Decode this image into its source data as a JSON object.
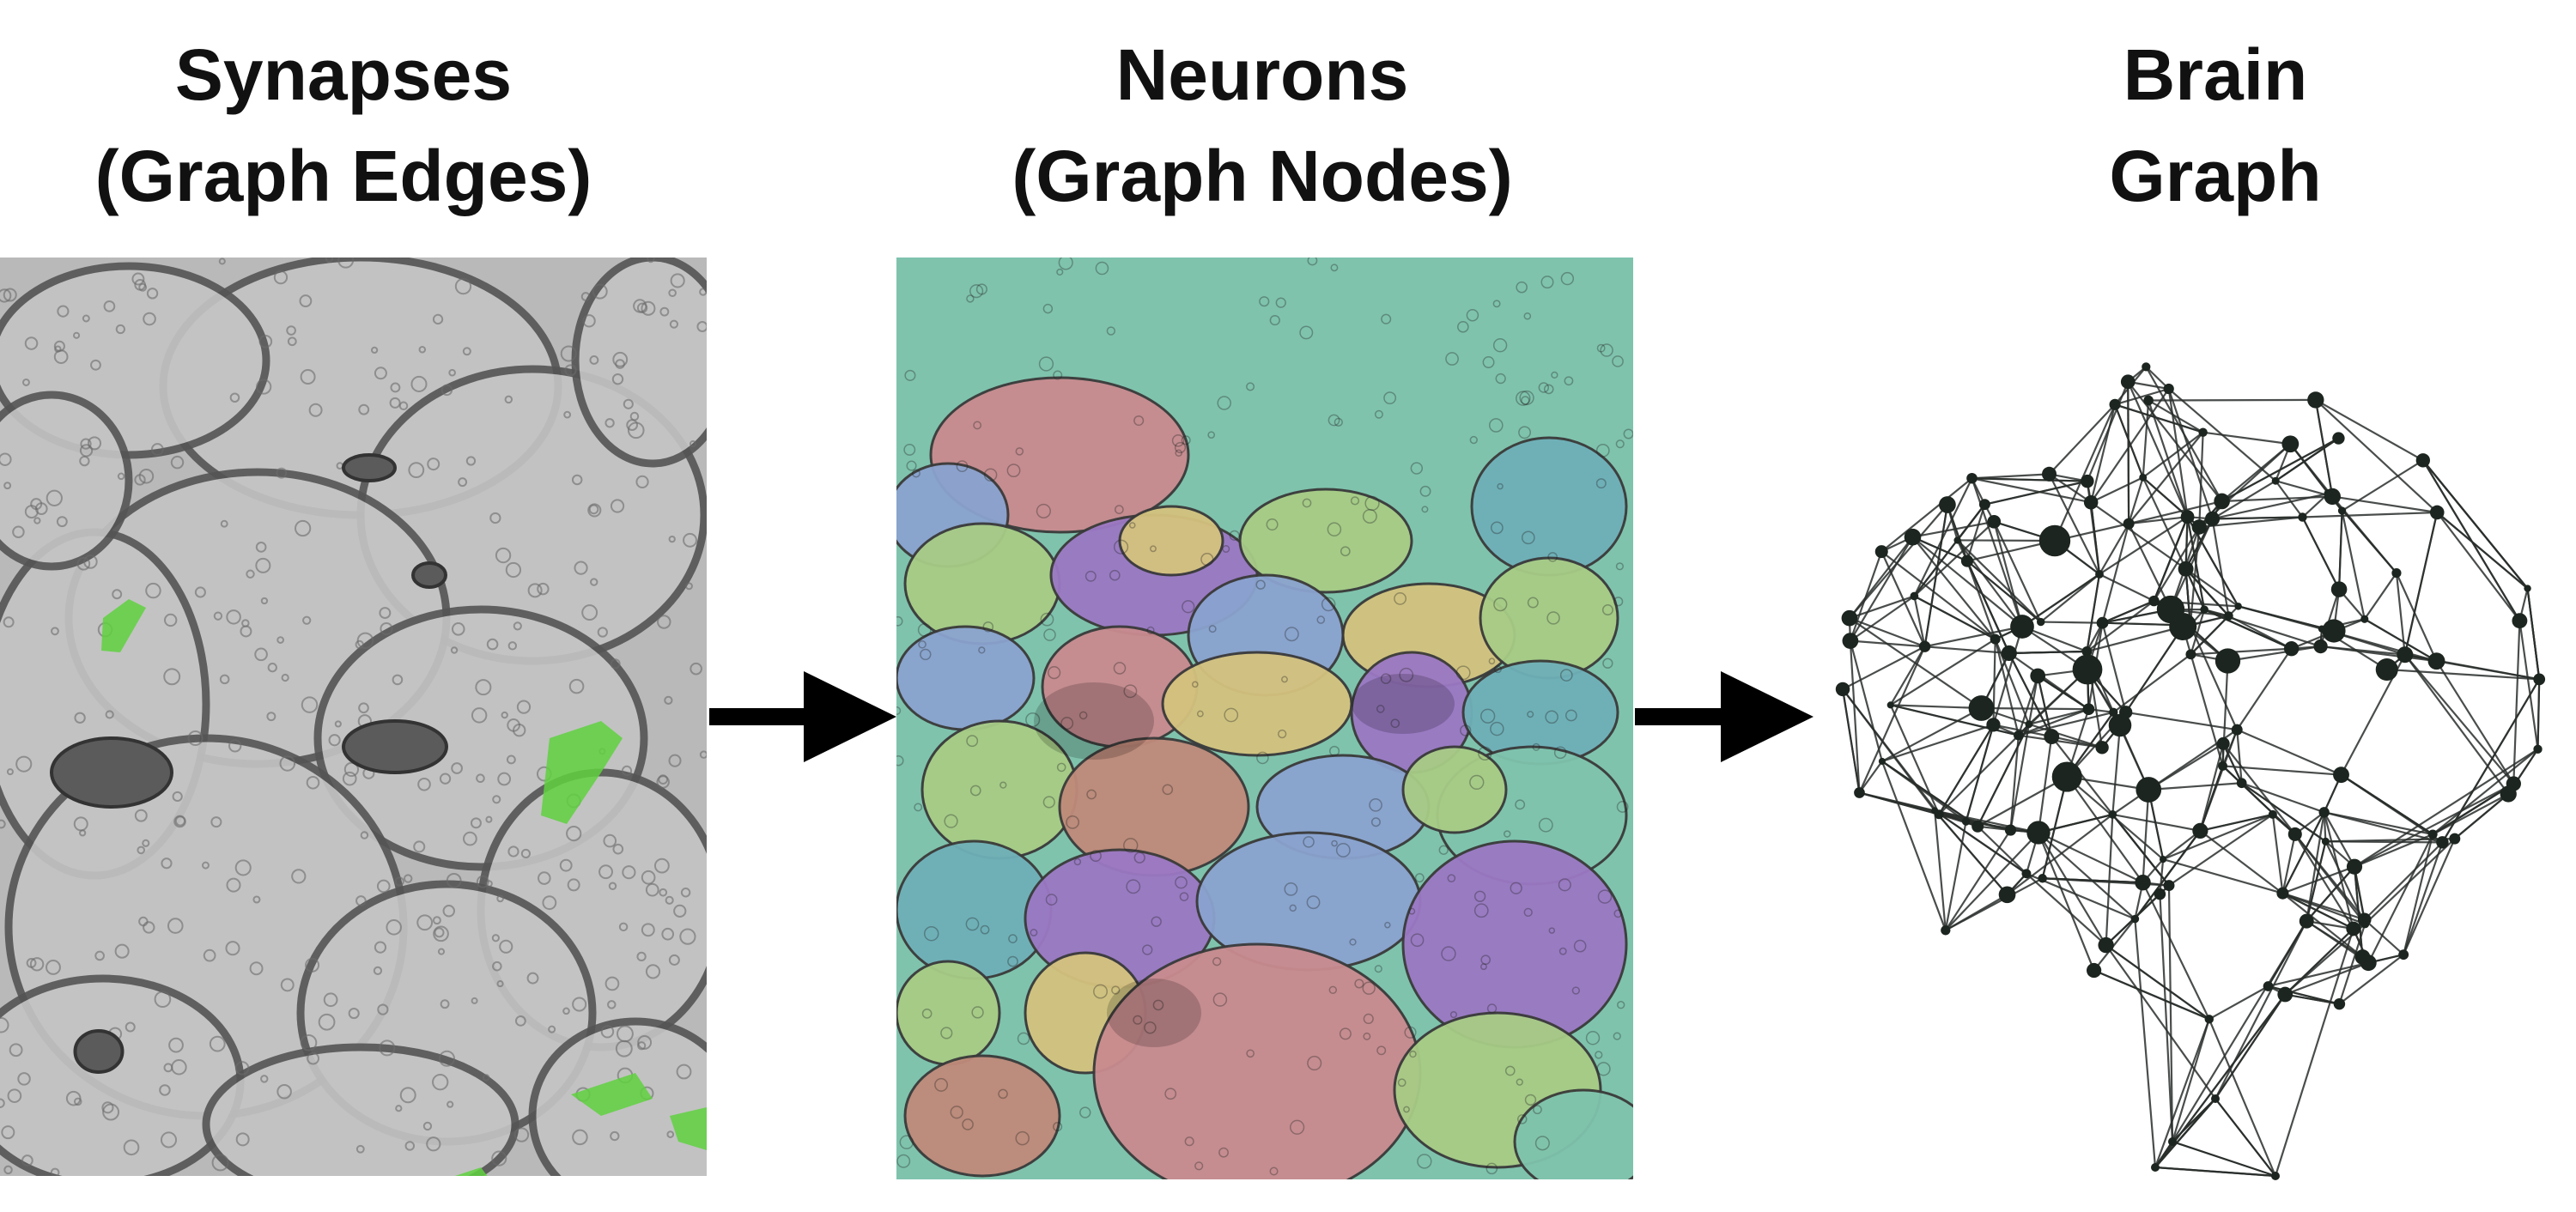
{
  "titles": {
    "synapses": {
      "line1": "Synapses",
      "line2": "(Graph Edges)"
    },
    "neurons": {
      "line1": "Neurons",
      "line2": "(Graph Nodes)"
    },
    "brain": {
      "line1": "Brain",
      "line2": "Graph"
    }
  },
  "colors": {
    "em_background": "#b9b9b9",
    "synapse_highlight": "#5fd13f",
    "membrane": "#555555",
    "node": "#1c251f",
    "edge": "#2a2f2c",
    "arrow": "#000000",
    "segment_palette": [
      "#7fc3ad",
      "#c98b8f",
      "#9b78c4",
      "#8aa3cf",
      "#a8cc86",
      "#d4c27e",
      "#6fb0b8",
      "#c08a7a"
    ]
  },
  "icons": {
    "arrow_1": "right-arrow-icon",
    "arrow_2": "right-arrow-icon"
  }
}
